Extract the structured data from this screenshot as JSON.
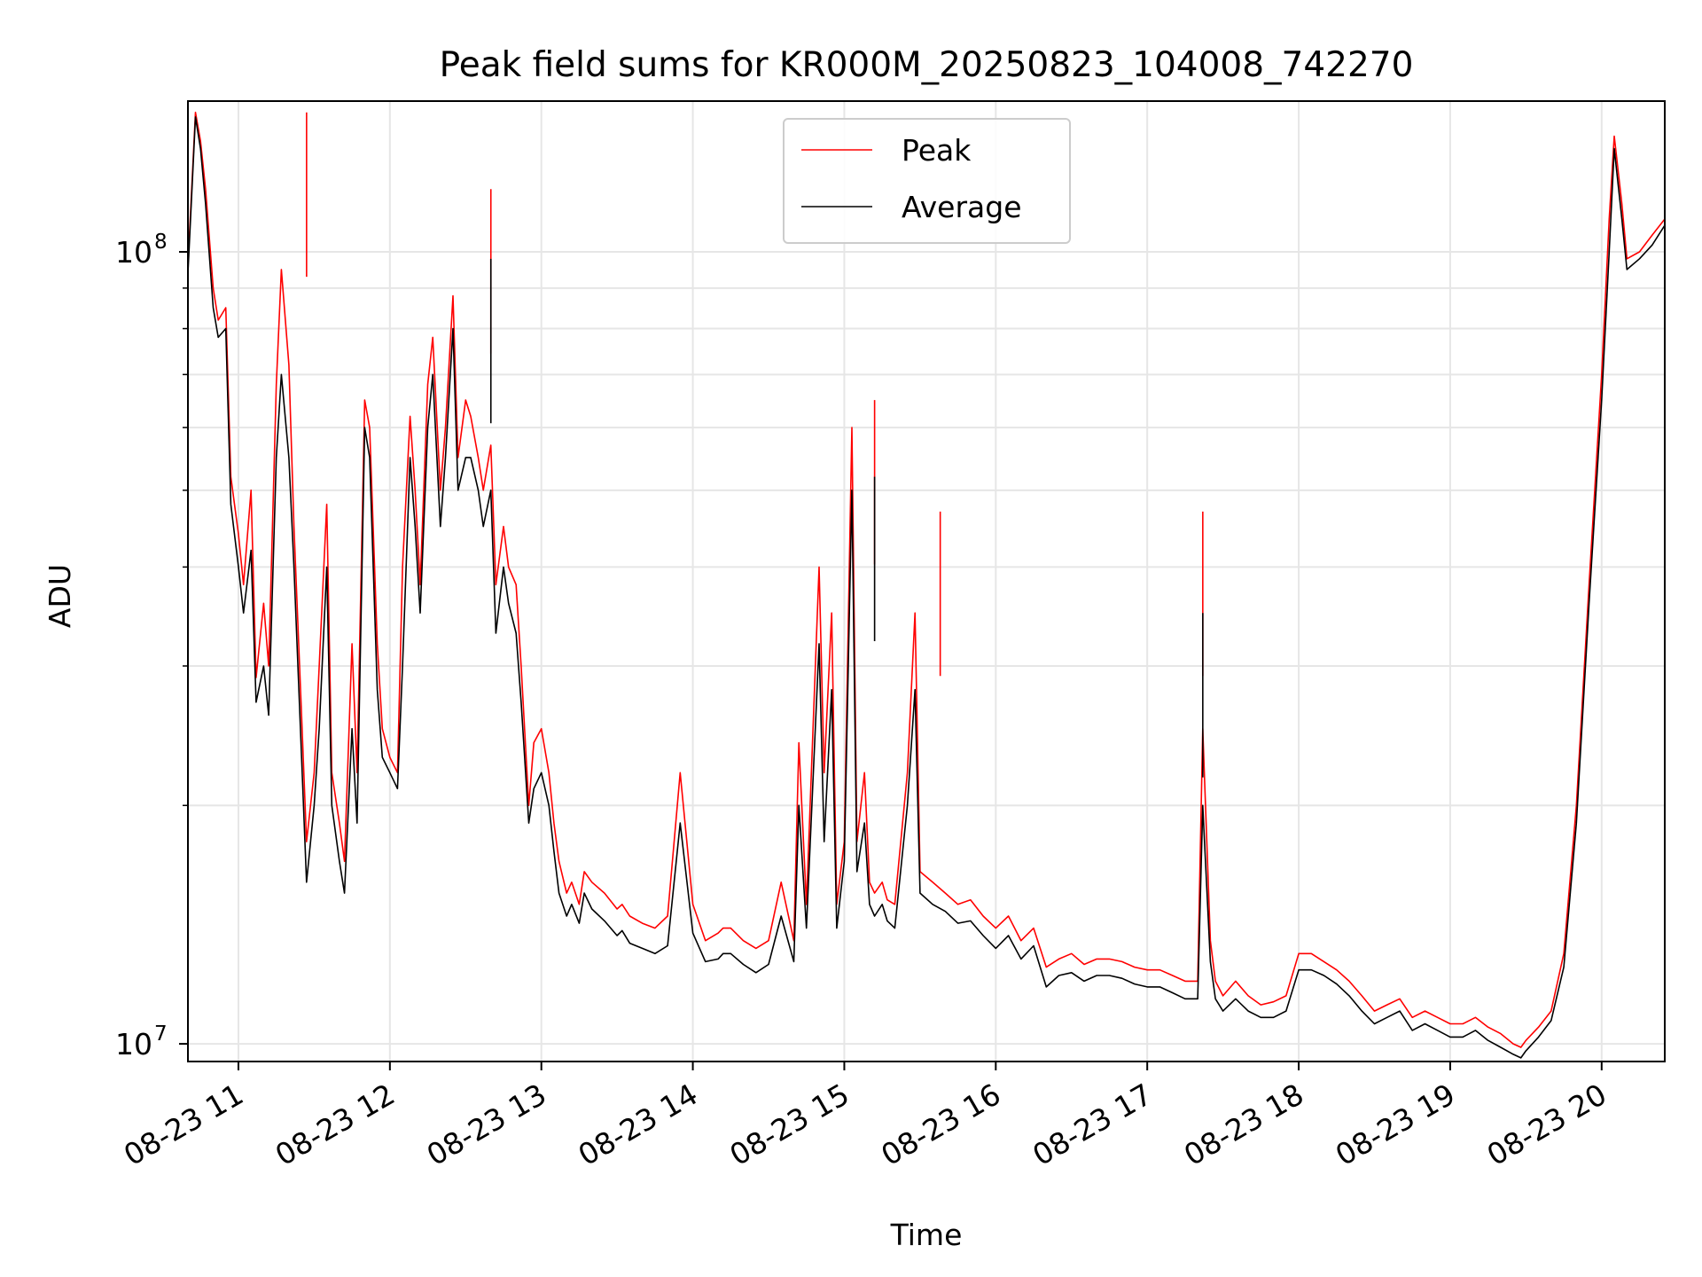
{
  "chart_data": {
    "type": "line",
    "title": "Peak field sums for KR000M_20250823_104008_742270",
    "xlabel": "Time",
    "ylabel": "ADU",
    "x_type": "datetime",
    "xlim": [
      "2025-08-23 10:40",
      "2025-08-23 20:25"
    ],
    "y_scale": "log",
    "ylim": [
      9500000,
      155000000
    ],
    "grid": true,
    "legend_position": "upper center",
    "x_tick_labels": [
      "08-23 11",
      "08-23 12",
      "08-23 13",
      "08-23 14",
      "08-23 15",
      "08-23 16",
      "08-23 17",
      "08-23 18",
      "08-23 19",
      "08-23 20"
    ],
    "x_tick_values": [
      "2025-08-23 11:00",
      "2025-08-23 12:00",
      "2025-08-23 13:00",
      "2025-08-23 14:00",
      "2025-08-23 15:00",
      "2025-08-23 16:00",
      "2025-08-23 17:00",
      "2025-08-23 18:00",
      "2025-08-23 19:00",
      "2025-08-23 20:00"
    ],
    "y_tick_labels": [
      {
        "base": "10",
        "exp": "7",
        "value": 10000000
      },
      {
        "base": "10",
        "exp": "8",
        "value": 100000000
      }
    ],
    "series": [
      {
        "name": "Peak",
        "color": "#ff0000",
        "x": [
          "10:40",
          "10:43",
          "10:45",
          "10:47",
          "10:50",
          "10:52",
          "10:55",
          "10:57",
          "11:00",
          "11:02",
          "11:05",
          "11:07",
          "11:10",
          "11:12",
          "11:15",
          "11:17",
          "11:20",
          "11:22",
          "11:25",
          "11:27",
          "11:30",
          "11:32",
          "11:35",
          "11:37",
          "11:40",
          "11:42",
          "11:45",
          "11:47",
          "11:50",
          "11:52",
          "11:55",
          "11:57",
          "12:00",
          "12:03",
          "12:05",
          "12:08",
          "12:10",
          "12:12",
          "12:15",
          "12:17",
          "12:20",
          "12:22",
          "12:25",
          "12:27",
          "12:30",
          "12:32",
          "12:35",
          "12:37",
          "12:40",
          "12:42",
          "12:45",
          "12:47",
          "12:50",
          "12:52",
          "12:55",
          "12:57",
          "13:00",
          "13:03",
          "13:05",
          "13:07",
          "13:10",
          "13:12",
          "13:15",
          "13:17",
          "13:20",
          "13:25",
          "13:30",
          "13:32",
          "13:35",
          "13:40",
          "13:45",
          "13:50",
          "13:55",
          "14:00",
          "14:05",
          "14:10",
          "14:12",
          "14:15",
          "14:20",
          "14:25",
          "14:30",
          "14:35",
          "14:40",
          "14:42",
          "14:45",
          "14:50",
          "14:52",
          "14:55",
          "14:57",
          "15:00",
          "15:03",
          "15:05",
          "15:08",
          "15:10",
          "15:12",
          "15:15",
          "15:17",
          "15:20",
          "15:25",
          "15:28",
          "15:30",
          "15:35",
          "15:40",
          "15:45",
          "15:50",
          "15:55",
          "16:00",
          "16:05",
          "16:10",
          "16:15",
          "16:20",
          "16:25",
          "16:30",
          "16:35",
          "16:40",
          "16:45",
          "16:50",
          "16:55",
          "17:00",
          "17:05",
          "17:10",
          "17:15",
          "17:20",
          "17:22",
          "17:25",
          "17:27",
          "17:30",
          "17:35",
          "17:40",
          "17:45",
          "17:50",
          "17:55",
          "18:00",
          "18:05",
          "18:10",
          "18:15",
          "18:20",
          "18:25",
          "18:30",
          "18:35",
          "18:40",
          "18:45",
          "18:50",
          "18:55",
          "19:00",
          "19:05",
          "19:10",
          "19:15",
          "19:20",
          "19:25",
          "19:28",
          "19:30",
          "19:35",
          "19:40",
          "19:45",
          "19:50",
          "19:55",
          "20:00",
          "20:03",
          "20:05",
          "20:08",
          "20:10",
          "20:15",
          "20:20",
          "20:25"
        ],
        "values": [
          96000000,
          150000000,
          138000000,
          120000000,
          90000000,
          82000000,
          85000000,
          52000000,
          44000000,
          38000000,
          50000000,
          29000000,
          36000000,
          30000000,
          68000000,
          95000000,
          72000000,
          45000000,
          26000000,
          18000000,
          22000000,
          30000000,
          48000000,
          22000000,
          19000000,
          17000000,
          32000000,
          22000000,
          65000000,
          60000000,
          32000000,
          25000000,
          23000000,
          22000000,
          40000000,
          62000000,
          50000000,
          38000000,
          68000000,
          78000000,
          50000000,
          60000000,
          88000000,
          55000000,
          65000000,
          62000000,
          55000000,
          50000000,
          57000000,
          38000000,
          45000000,
          40000000,
          38000000,
          30000000,
          20000000,
          24000000,
          25000000,
          22000000,
          19000000,
          17000000,
          15500000,
          16000000,
          15000000,
          16500000,
          16000000,
          15500000,
          14800000,
          15000000,
          14500000,
          14200000,
          14000000,
          14500000,
          22000000,
          15000000,
          13500000,
          13800000,
          14000000,
          14000000,
          13500000,
          13200000,
          13500000,
          16000000,
          13500000,
          24000000,
          15000000,
          40000000,
          22000000,
          35000000,
          15000000,
          18000000,
          60000000,
          18000000,
          22000000,
          16000000,
          15500000,
          16000000,
          15200000,
          15000000,
          22000000,
          35000000,
          16500000,
          16000000,
          15500000,
          15000000,
          15200000,
          14500000,
          14000000,
          14500000,
          13500000,
          14000000,
          12500000,
          12800000,
          13000000,
          12600000,
          12800000,
          12800000,
          12700000,
          12500000,
          12400000,
          12400000,
          12200000,
          12000000,
          12000000,
          25000000,
          13500000,
          12000000,
          11500000,
          12000000,
          11500000,
          11200000,
          11300000,
          11500000,
          13000000,
          13000000,
          12700000,
          12400000,
          12000000,
          11500000,
          11000000,
          11200000,
          11400000,
          10800000,
          11000000,
          10800000,
          10600000,
          10600000,
          10800000,
          10500000,
          10300000,
          10000000,
          9900000,
          10100000,
          10500000,
          11000000,
          13000000,
          20000000,
          38000000,
          70000000,
          110000000,
          140000000,
          115000000,
          98000000,
          100000000,
          105000000,
          110000000
        ],
        "spikes": [
          {
            "x": "11:27",
            "value": 150000000
          },
          {
            "x": "12:40",
            "value": 120000000
          },
          {
            "x": "15:12",
            "value": 65000000
          },
          {
            "x": "15:38",
            "value": 47000000
          },
          {
            "x": "17:22",
            "value": 47000000
          }
        ]
      },
      {
        "name": "Average",
        "color": "#000000",
        "x": [
          "10:40",
          "10:43",
          "10:45",
          "10:47",
          "10:50",
          "10:52",
          "10:55",
          "10:57",
          "11:00",
          "11:02",
          "11:05",
          "11:07",
          "11:10",
          "11:12",
          "11:15",
          "11:17",
          "11:20",
          "11:22",
          "11:25",
          "11:27",
          "11:30",
          "11:32",
          "11:35",
          "11:37",
          "11:40",
          "11:42",
          "11:45",
          "11:47",
          "11:50",
          "11:52",
          "11:55",
          "11:57",
          "12:00",
          "12:03",
          "12:05",
          "12:08",
          "12:10",
          "12:12",
          "12:15",
          "12:17",
          "12:20",
          "12:22",
          "12:25",
          "12:27",
          "12:30",
          "12:32",
          "12:35",
          "12:37",
          "12:40",
          "12:42",
          "12:45",
          "12:47",
          "12:50",
          "12:52",
          "12:55",
          "12:57",
          "13:00",
          "13:03",
          "13:05",
          "13:07",
          "13:10",
          "13:12",
          "13:15",
          "13:17",
          "13:20",
          "13:25",
          "13:30",
          "13:32",
          "13:35",
          "13:40",
          "13:45",
          "13:50",
          "13:55",
          "14:00",
          "14:05",
          "14:10",
          "14:12",
          "14:15",
          "14:20",
          "14:25",
          "14:30",
          "14:35",
          "14:40",
          "14:42",
          "14:45",
          "14:50",
          "14:52",
          "14:55",
          "14:57",
          "15:00",
          "15:03",
          "15:05",
          "15:08",
          "15:10",
          "15:12",
          "15:15",
          "15:17",
          "15:20",
          "15:25",
          "15:28",
          "15:30",
          "15:35",
          "15:40",
          "15:45",
          "15:50",
          "15:55",
          "16:00",
          "16:05",
          "16:10",
          "16:15",
          "16:20",
          "16:25",
          "16:30",
          "16:35",
          "16:40",
          "16:45",
          "16:50",
          "16:55",
          "17:00",
          "17:05",
          "17:10",
          "17:15",
          "17:20",
          "17:22",
          "17:25",
          "17:27",
          "17:30",
          "17:35",
          "17:40",
          "17:45",
          "17:50",
          "17:55",
          "18:00",
          "18:05",
          "18:10",
          "18:15",
          "18:20",
          "18:25",
          "18:30",
          "18:35",
          "18:40",
          "18:45",
          "18:50",
          "18:55",
          "19:00",
          "19:05",
          "19:10",
          "19:15",
          "19:20",
          "19:25",
          "19:28",
          "19:30",
          "19:35",
          "19:40",
          "19:45",
          "19:50",
          "19:55",
          "20:00",
          "20:03",
          "20:05",
          "20:08",
          "20:10",
          "20:15",
          "20:20",
          "20:25"
        ],
        "values": [
          94000000,
          148000000,
          135000000,
          115000000,
          85000000,
          78000000,
          80000000,
          48000000,
          40000000,
          35000000,
          42000000,
          27000000,
          30000000,
          26000000,
          55000000,
          70000000,
          55000000,
          40000000,
          23000000,
          16000000,
          20000000,
          25000000,
          40000000,
          20000000,
          17000000,
          15500000,
          25000000,
          19000000,
          60000000,
          55000000,
          28000000,
          23000000,
          22000000,
          21000000,
          30000000,
          55000000,
          45000000,
          35000000,
          60000000,
          70000000,
          45000000,
          55000000,
          80000000,
          50000000,
          55000000,
          55000000,
          50000000,
          45000000,
          50000000,
          33000000,
          40000000,
          36000000,
          33000000,
          27000000,
          19000000,
          21000000,
          22000000,
          20000000,
          17500000,
          15500000,
          14500000,
          15000000,
          14200000,
          15500000,
          14800000,
          14300000,
          13700000,
          13900000,
          13400000,
          13200000,
          13000000,
          13300000,
          19000000,
          13800000,
          12700000,
          12800000,
          13000000,
          13000000,
          12600000,
          12300000,
          12600000,
          14500000,
          12700000,
          20000000,
          14000000,
          32000000,
          18000000,
          28000000,
          14000000,
          17000000,
          50000000,
          16500000,
          19000000,
          15000000,
          14500000,
          15000000,
          14300000,
          14000000,
          20000000,
          28000000,
          15500000,
          15000000,
          14700000,
          14200000,
          14300000,
          13700000,
          13200000,
          13700000,
          12800000,
          13300000,
          11800000,
          12200000,
          12300000,
          12000000,
          12200000,
          12200000,
          12100000,
          11900000,
          11800000,
          11800000,
          11600000,
          11400000,
          11400000,
          20000000,
          12700000,
          11400000,
          11000000,
          11400000,
          11000000,
          10800000,
          10800000,
          11000000,
          12400000,
          12400000,
          12200000,
          11900000,
          11500000,
          11000000,
          10600000,
          10800000,
          11000000,
          10400000,
          10600000,
          10400000,
          10200000,
          10200000,
          10400000,
          10100000,
          9900000,
          9700000,
          9600000,
          9800000,
          10200000,
          10700000,
          12500000,
          19000000,
          36000000,
          65000000,
          100000000,
          135000000,
          110000000,
          95000000,
          98000000,
          102000000,
          108000000
        ],
        "spikes": [
          {
            "x": "12:40",
            "value": 98000000
          },
          {
            "x": "15:12",
            "value": 52000000
          },
          {
            "x": "17:22",
            "value": 35000000
          }
        ]
      }
    ]
  }
}
